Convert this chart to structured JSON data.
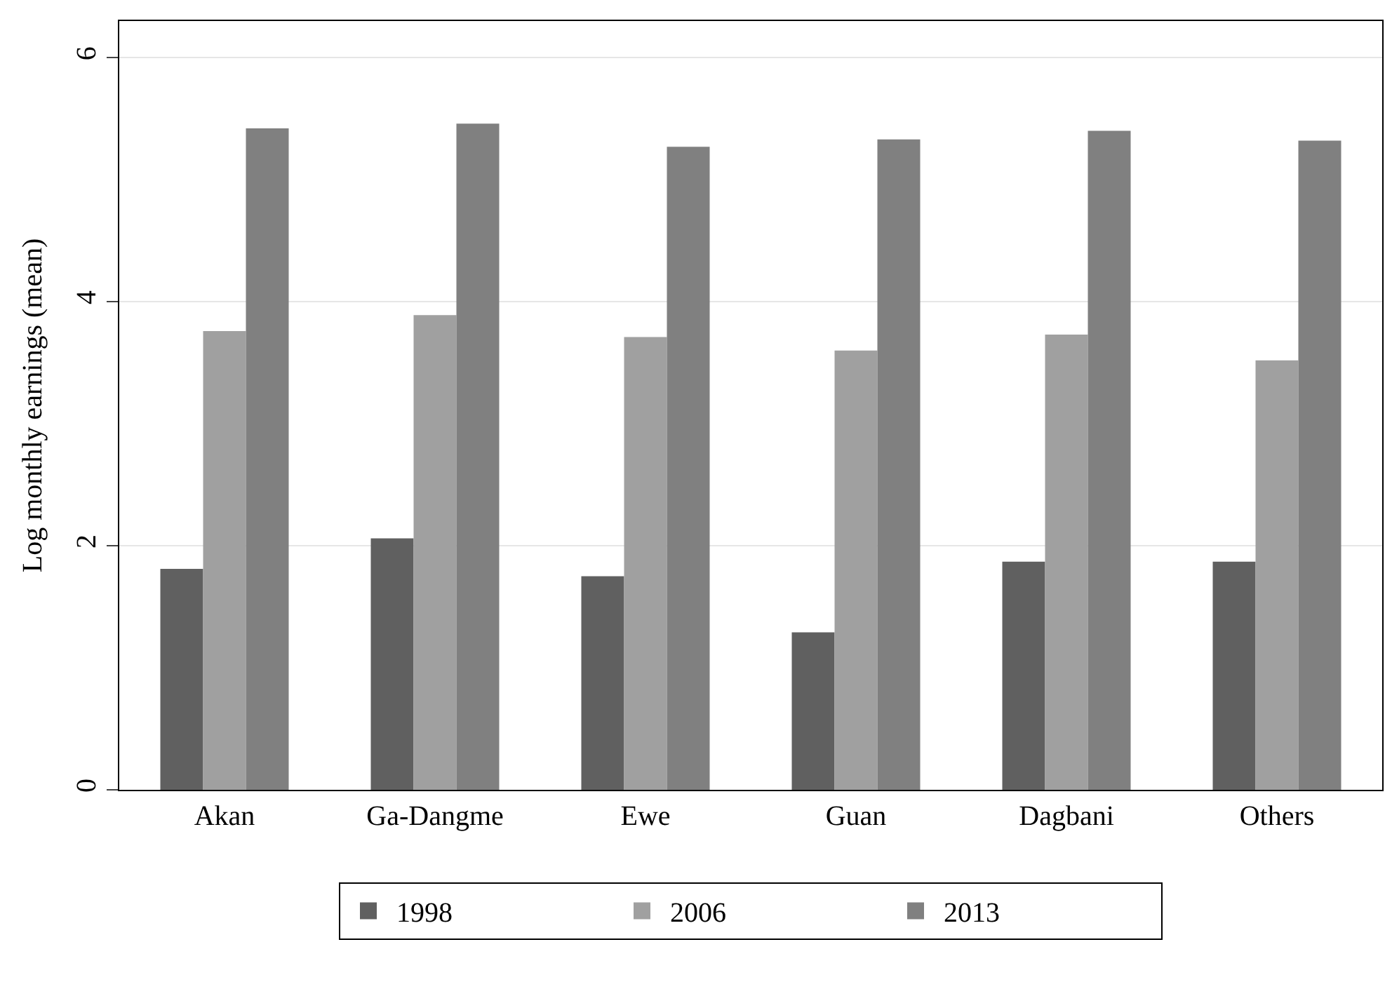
{
  "chart_data": {
    "type": "bar",
    "ylabel": "Log monthly earnings (mean)",
    "categories": [
      "Akan",
      "Ga-Dangme",
      "Ewe",
      "Guan",
      "Dagbani",
      "Others"
    ],
    "series": [
      {
        "name": "1998",
        "color": "#606060",
        "values": [
          1.81,
          2.06,
          1.75,
          1.29,
          1.87,
          1.87
        ]
      },
      {
        "name": "2006",
        "color": "#a0a0a0",
        "values": [
          3.76,
          3.89,
          3.71,
          3.6,
          3.73,
          3.52
        ]
      },
      {
        "name": "2013",
        "color": "#808080",
        "values": [
          5.42,
          5.46,
          5.27,
          5.33,
          5.4,
          5.32
        ]
      }
    ],
    "ylim": [
      0,
      6.3
    ],
    "yticks": [
      0,
      2,
      4,
      6
    ],
    "grid": "y",
    "legend": "bottom"
  }
}
